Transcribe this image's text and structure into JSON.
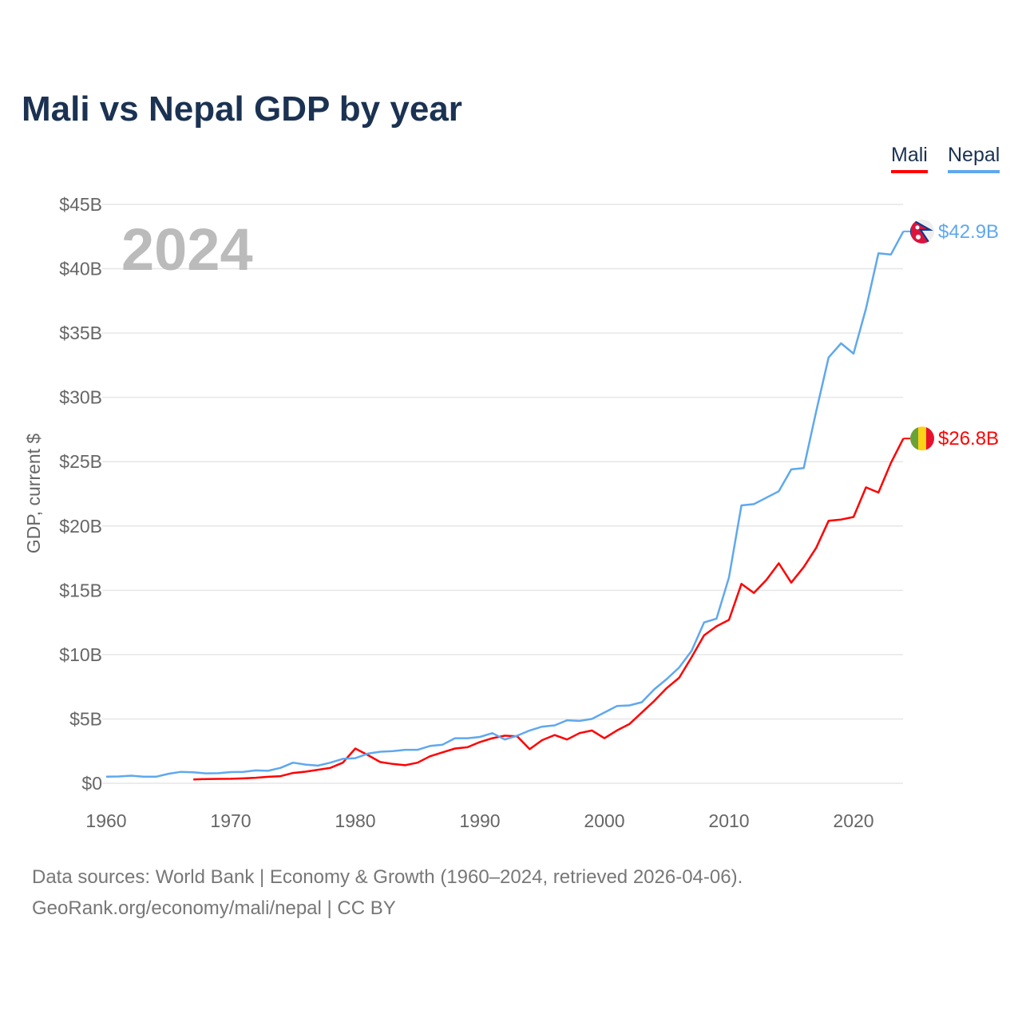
{
  "title": "Mali vs Nepal GDP by year",
  "footer": {
    "line1": "Data sources: World Bank | Economy & Growth (1960–2024, retrieved 2026-04-06).",
    "line2": "GeoRank.org/economy/mali/nepal | CC BY"
  },
  "chart_data": {
    "type": "line",
    "title": "Mali vs Nepal GDP by year",
    "xlabel": "",
    "ylabel": "GDP, current $",
    "xlim": [
      1960,
      2024
    ],
    "ylim": [
      0,
      45
    ],
    "y_unit": "billions USD",
    "x_ticks": [
      "1960",
      "1970",
      "1980",
      "1990",
      "2000",
      "2010",
      "2020"
    ],
    "y_ticks": [
      "$0",
      "$5B",
      "$10B",
      "$15B",
      "$20B",
      "$25B",
      "$30B",
      "$35B",
      "$40B",
      "$45B"
    ],
    "grid": true,
    "legend_position": "top-right",
    "year_watermark": "2024",
    "series": [
      {
        "name": "Mali",
        "color": "#ff0000",
        "end_label": "$26.8B",
        "flag": "mali-flag",
        "start_year": 1967,
        "values": [
          0.3,
          0.33,
          0.34,
          0.35,
          0.38,
          0.43,
          0.5,
          0.55,
          0.8,
          0.9,
          1.05,
          1.2,
          1.6,
          2.7,
          2.2,
          1.65,
          1.5,
          1.4,
          1.6,
          2.1,
          2.4,
          2.7,
          2.8,
          3.2,
          3.5,
          3.7,
          3.65,
          2.65,
          3.35,
          3.75,
          3.4,
          3.9,
          4.1,
          3.5,
          4.1,
          4.6,
          5.5,
          6.4,
          7.4,
          8.2,
          9.8,
          11.5,
          12.2,
          12.7,
          15.5,
          14.8,
          15.8,
          17.1,
          15.6,
          16.8,
          18.3,
          20.4,
          20.5,
          20.7,
          23.0,
          22.6,
          24.9,
          26.8
        ]
      },
      {
        "name": "Nepal",
        "color": "#5fa8ee",
        "end_label": "$42.9B",
        "flag": "nepal-flag",
        "start_year": 1960,
        "values": [
          0.51,
          0.53,
          0.59,
          0.51,
          0.51,
          0.74,
          0.89,
          0.85,
          0.77,
          0.78,
          0.87,
          0.88,
          1.0,
          0.97,
          1.2,
          1.6,
          1.45,
          1.37,
          1.6,
          1.9,
          1.95,
          2.3,
          2.45,
          2.5,
          2.6,
          2.6,
          2.9,
          3.0,
          3.5,
          3.5,
          3.6,
          3.9,
          3.4,
          3.7,
          4.1,
          4.4,
          4.5,
          4.9,
          4.85,
          5.0,
          5.5,
          6.0,
          6.05,
          6.3,
          7.3,
          8.1,
          9.0,
          10.3,
          12.5,
          12.8,
          16.0,
          21.6,
          21.7,
          22.2,
          22.7,
          24.4,
          24.5,
          28.9,
          33.1,
          34.2,
          33.4,
          36.9,
          41.2,
          41.1,
          42.9
        ]
      }
    ]
  }
}
